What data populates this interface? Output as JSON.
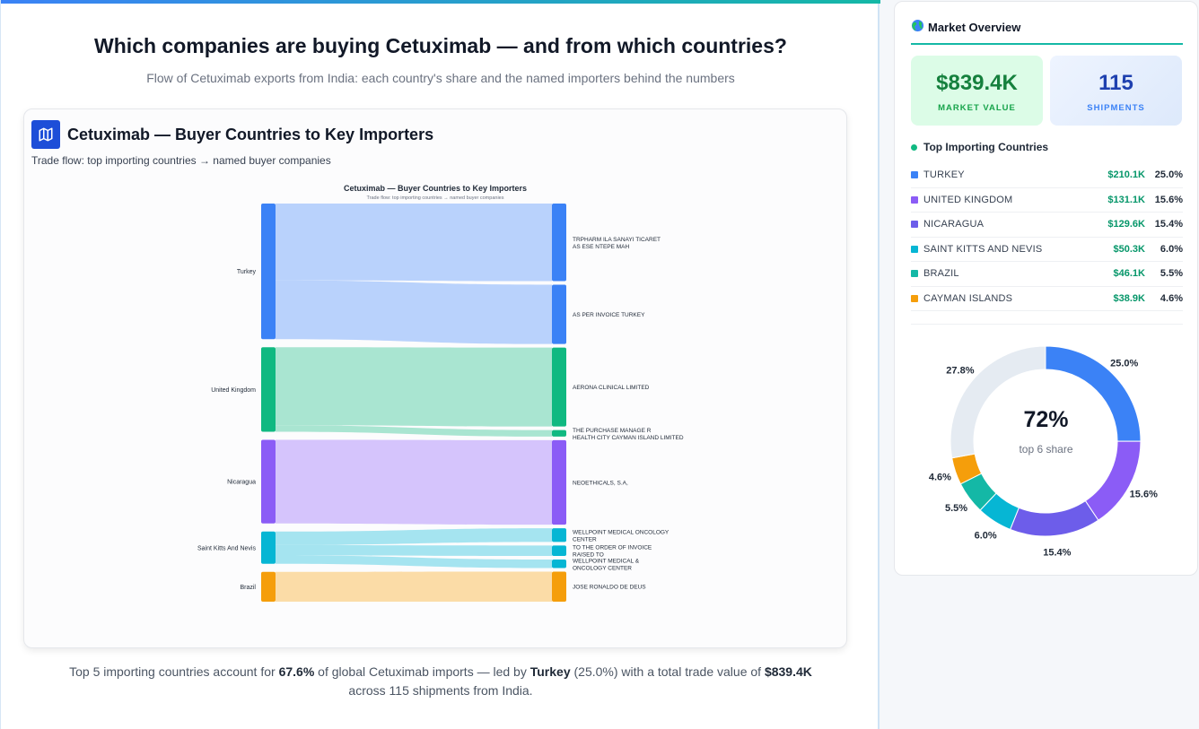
{
  "header": {
    "title": "Which companies are buying Cetuximab — and from which countries?",
    "subtitle": "Flow of Cetuximab exports from India: each country's share and the named importers behind the numbers"
  },
  "card": {
    "title": "Cetuximab — Buyer Countries to Key Importers",
    "subtitle": "Trade flow: top importing countries → named buyer companies",
    "icon": "map-icon"
  },
  "chart_data": {
    "type": "sankey",
    "title": "Cetuximab — Buyer Countries to Key Importers",
    "subtitle": "Trade flow: top importing countries → named buyer companies",
    "sources": [
      {
        "name": "Turkey",
        "color": "#3b82f6"
      },
      {
        "name": "United Kingdom",
        "color": "#10b981"
      },
      {
        "name": "Nicaragua",
        "color": "#8b5cf6"
      },
      {
        "name": "Saint Kitts And Nevis",
        "color": "#06b6d4"
      },
      {
        "name": "Brazil",
        "color": "#f59e0b"
      }
    ],
    "targets": [
      {
        "name": "TRPHARM ILA SANAYI TICARET AS ESE NTEPE MAH",
        "lines": [
          "TRPHARM ILA SANAYI TICARET",
          "AS ESE NTEPE MAH"
        ],
        "source": "Turkey"
      },
      {
        "name": "AS PER INVOICE TURKEY",
        "lines": [
          "AS PER INVOICE TURKEY"
        ],
        "source": "Turkey"
      },
      {
        "name": "AERONA CLINICAL LIMITED",
        "lines": [
          "AERONA CLINICAL LIMITED"
        ],
        "source": "United Kingdom"
      },
      {
        "name": "THE PURCHASE MANAGE R HEALTH CITY CAYMAN ISLAND LIMITED",
        "lines": [
          "THE PURCHASE MANAGE R",
          "HEALTH CITY CAYMAN ISLAND LIMITED"
        ],
        "source": "United Kingdom"
      },
      {
        "name": "NEOETHICALS, S.A,",
        "lines": [
          "NEOETHICALS, S.A,"
        ],
        "source": "Nicaragua"
      },
      {
        "name": "WELLPOINT MEDICAL ONCOLOGY CENTER",
        "lines": [
          "WELLPOINT MEDICAL ONCOLOGY",
          "CENTER"
        ],
        "source": "Saint Kitts And Nevis"
      },
      {
        "name": "TO THE ORDER OF INVOICE RAISED TO",
        "lines": [
          "TO THE ORDER OF INVOICE",
          "RAISED TO"
        ],
        "source": "Saint Kitts And Nevis"
      },
      {
        "name": "WELLPOINT MEDICAL & ONCOLOGY CENTER",
        "lines": [
          "WELLPOINT MEDICAL &",
          "ONCOLOGY CENTER"
        ],
        "source": "Saint Kitts And Nevis"
      },
      {
        "name": "JOSE RONALDO DE DEUS",
        "lines": [
          "JOSE RONALDO DE DEUS"
        ],
        "source": "Brazil"
      }
    ],
    "flows_usd_k": [
      {
        "from": "Turkey",
        "to": "TRPHARM ILA SANAYI TICARET AS ESE NTEPE MAH",
        "value": 119
      },
      {
        "from": "Turkey",
        "to": "AS PER INVOICE TURKEY",
        "value": 91
      },
      {
        "from": "United Kingdom",
        "to": "AERONA CLINICAL LIMITED",
        "value": 121
      },
      {
        "from": "United Kingdom",
        "to": "THE PURCHASE MANAGE R HEALTH CITY CAYMAN ISLAND LIMITED",
        "value": 10
      },
      {
        "from": "Nicaragua",
        "to": "NEOETHICALS, S.A,",
        "value": 129.6
      },
      {
        "from": "Saint Kitts And Nevis",
        "to": "WELLPOINT MEDICAL ONCOLOGY CENTER",
        "value": 21
      },
      {
        "from": "Saint Kitts And Nevis",
        "to": "TO THE ORDER OF INVOICE RAISED TO",
        "value": 16
      },
      {
        "from": "Saint Kitts And Nevis",
        "to": "WELLPOINT MEDICAL & ONCOLOGY CENTER",
        "value": 13
      },
      {
        "from": "Brazil",
        "to": "JOSE RONALDO DE DEUS",
        "value": 46.1
      }
    ]
  },
  "footer": {
    "prefix": "Top 5 importing countries account for ",
    "share": "67.6%",
    "middle": " of global Cetuximab imports — led by ",
    "leader": "Turkey",
    "leader_share": " (25.0%) with a total trade value of ",
    "total": "$839.4K",
    "line2": "across 115 shipments from India."
  },
  "side": {
    "globe_icon": "globe-icon",
    "title": "Market Overview",
    "kpis": {
      "market_value": "$839.4K",
      "market_label": "MARKET VALUE",
      "shipments": "115",
      "shipments_label": "SHIPMENTS"
    },
    "list_title": "Top Importing Countries",
    "countries": [
      {
        "name": "TURKEY",
        "value": "$210.1K",
        "share": "25.0%",
        "color": "#3b82f6"
      },
      {
        "name": "UNITED KINGDOM",
        "value": "$131.1K",
        "share": "15.6%",
        "color": "#8b5cf6"
      },
      {
        "name": "NICARAGUA",
        "value": "$129.6K",
        "share": "15.4%",
        "color": "#6d5dea"
      },
      {
        "name": "SAINT KITTS AND NEVIS",
        "value": "$50.3K",
        "share": "6.0%",
        "color": "#06b6d4"
      },
      {
        "name": "BRAZIL",
        "value": "$46.1K",
        "share": "5.5%",
        "color": "#14b8a6"
      },
      {
        "name": "CAYMAN ISLANDS",
        "value": "$38.9K",
        "share": "4.6%",
        "color": "#f59e0b"
      }
    ],
    "donut": {
      "center_value": "72%",
      "center_label": "top 6 share",
      "slices": [
        {
          "label": "25.0%",
          "value": 25.0,
          "color": "#3b82f6"
        },
        {
          "label": "15.6%",
          "value": 15.6,
          "color": "#8b5cf6"
        },
        {
          "label": "15.4%",
          "value": 15.4,
          "color": "#6d5dea"
        },
        {
          "label": "6.0%",
          "value": 6.0,
          "color": "#06b6d4"
        },
        {
          "label": "5.5%",
          "value": 5.5,
          "color": "#14b8a6"
        },
        {
          "label": "4.6%",
          "value": 4.6,
          "color": "#f59e0b"
        },
        {
          "label": "27.8%",
          "value": 27.8,
          "color": "#e5ebf2"
        }
      ]
    }
  }
}
